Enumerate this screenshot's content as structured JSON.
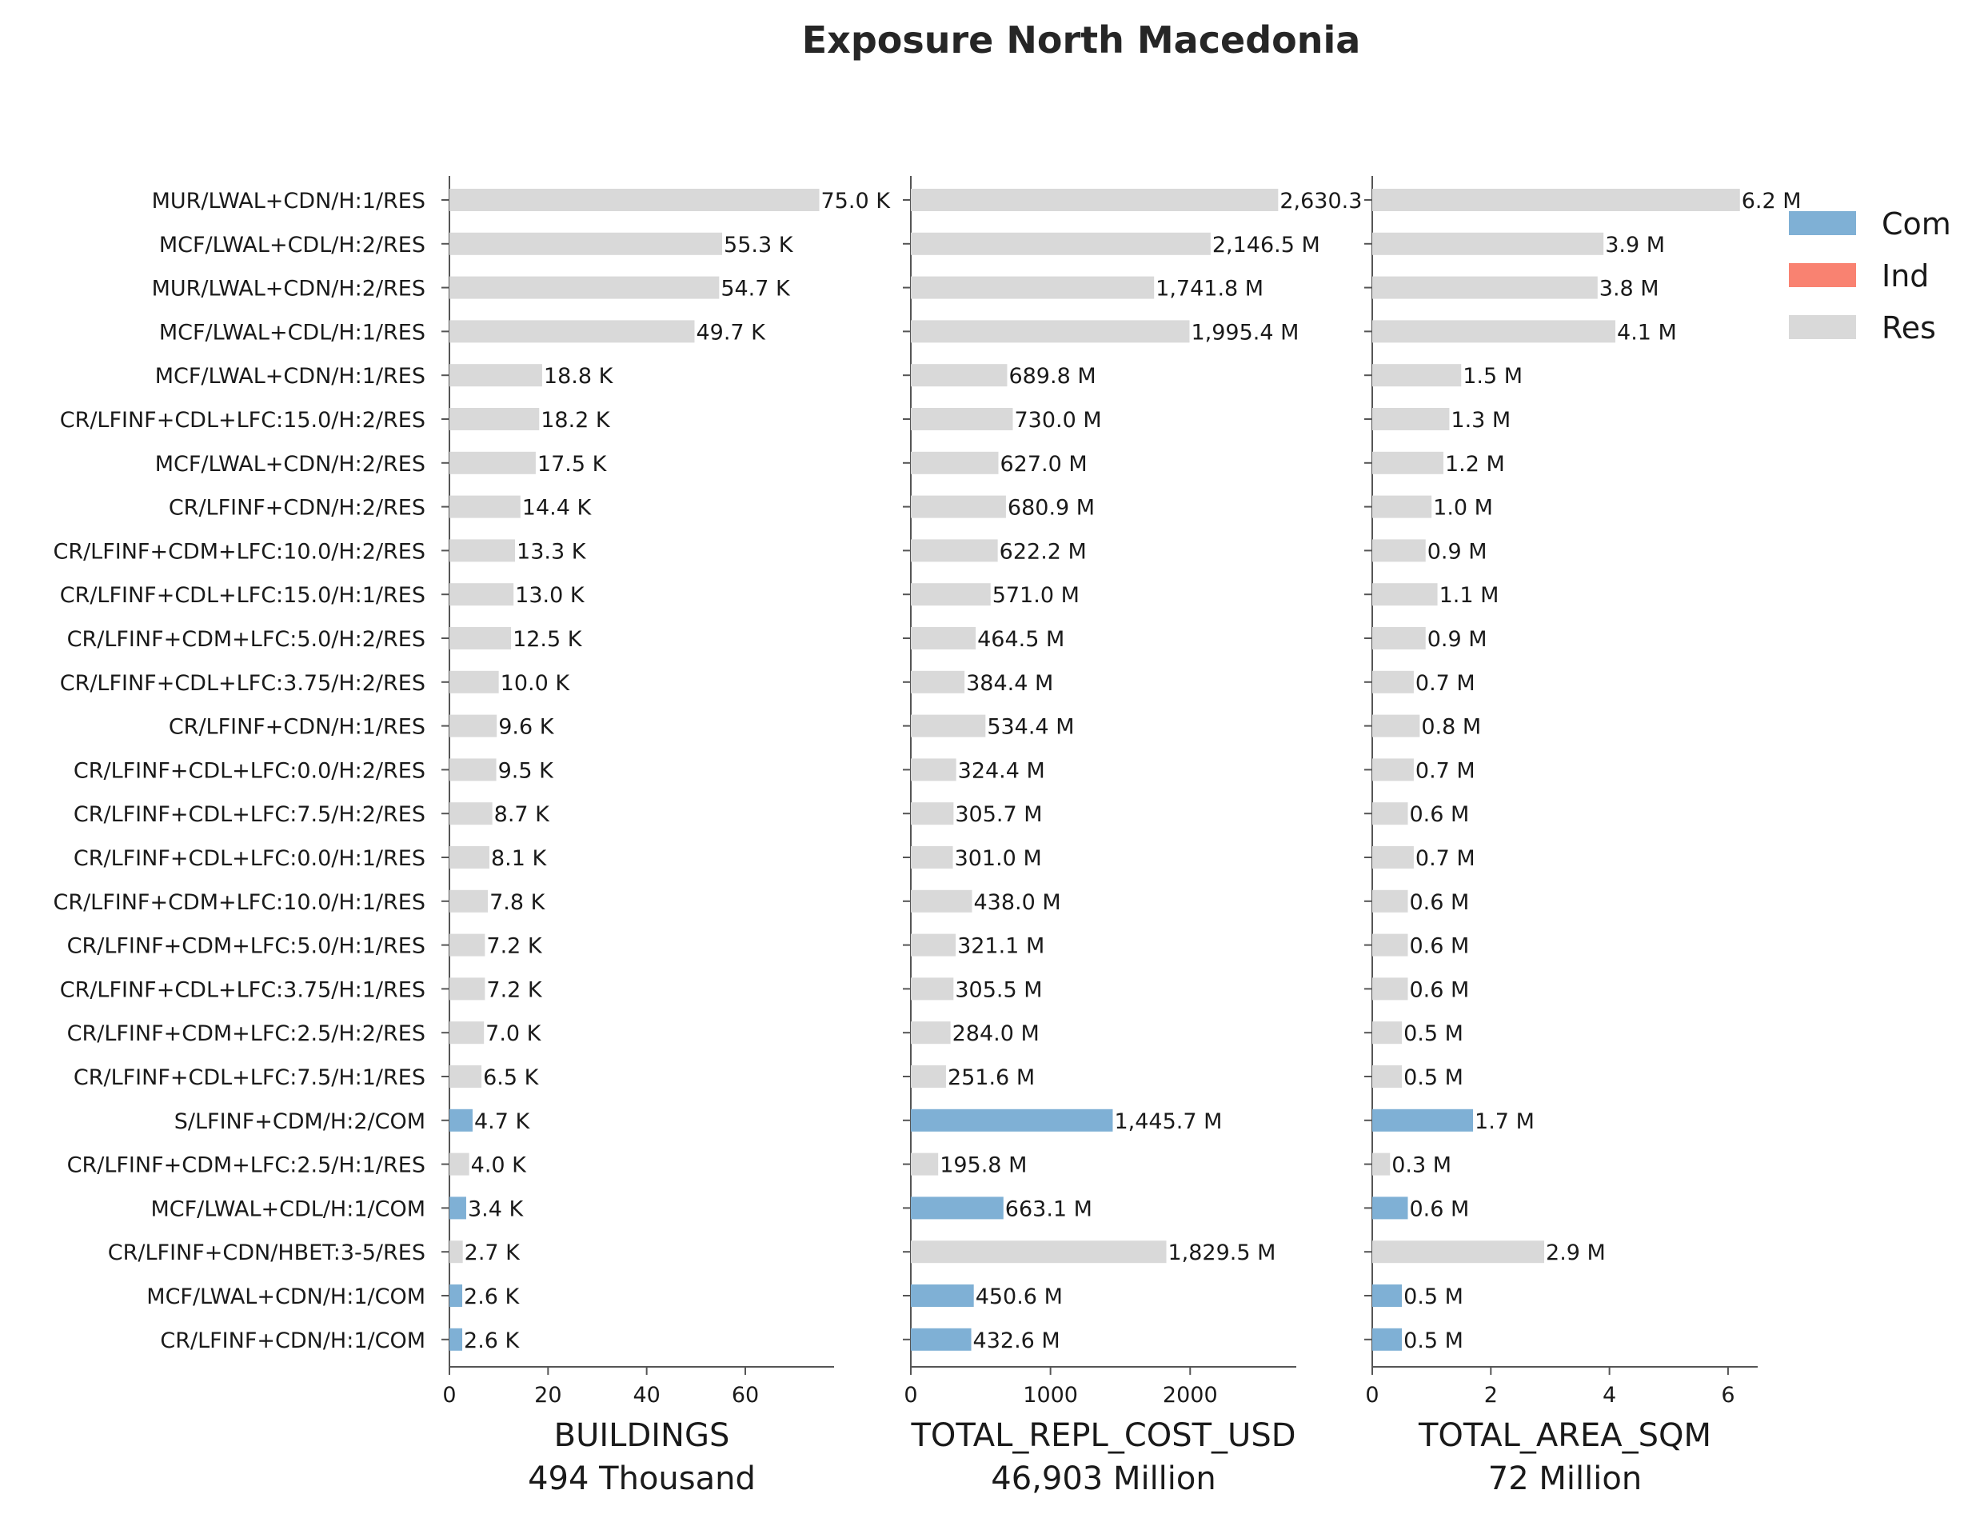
{
  "chart_data": {
    "type": "bar",
    "orientation": "horizontal",
    "title": "Exposure North Macedonia",
    "categories": [
      "MUR/LWAL+CDN/H:1/RES",
      "MCF/LWAL+CDL/H:2/RES",
      "MUR/LWAL+CDN/H:2/RES",
      "MCF/LWAL+CDL/H:1/RES",
      "MCF/LWAL+CDN/H:1/RES",
      "CR/LFINF+CDL+LFC:15.0/H:2/RES",
      "MCF/LWAL+CDN/H:2/RES",
      "CR/LFINF+CDN/H:2/RES",
      "CR/LFINF+CDM+LFC:10.0/H:2/RES",
      "CR/LFINF+CDL+LFC:15.0/H:1/RES",
      "CR/LFINF+CDM+LFC:5.0/H:2/RES",
      "CR/LFINF+CDL+LFC:3.75/H:2/RES",
      "CR/LFINF+CDN/H:1/RES",
      "CR/LFINF+CDL+LFC:0.0/H:2/RES",
      "CR/LFINF+CDL+LFC:7.5/H:2/RES",
      "CR/LFINF+CDL+LFC:0.0/H:1/RES",
      "CR/LFINF+CDM+LFC:10.0/H:1/RES",
      "CR/LFINF+CDM+LFC:5.0/H:1/RES",
      "CR/LFINF+CDL+LFC:3.75/H:1/RES",
      "CR/LFINF+CDM+LFC:2.5/H:2/RES",
      "CR/LFINF+CDL+LFC:7.5/H:1/RES",
      "S/LFINF+CDM/H:2/COM",
      "CR/LFINF+CDM+LFC:2.5/H:1/RES",
      "MCF/LWAL+CDL/H:1/COM",
      "CR/LFINF+CDN/HBET:3-5/RES",
      "MCF/LWAL+CDN/H:1/COM",
      "CR/LFINF+CDN/H:1/COM"
    ],
    "occupancy": [
      "Res",
      "Res",
      "Res",
      "Res",
      "Res",
      "Res",
      "Res",
      "Res",
      "Res",
      "Res",
      "Res",
      "Res",
      "Res",
      "Res",
      "Res",
      "Res",
      "Res",
      "Res",
      "Res",
      "Res",
      "Res",
      "Com",
      "Res",
      "Com",
      "Res",
      "Com",
      "Com"
    ],
    "panels": [
      {
        "xlabel": "BUILDINGS",
        "total_label": "494 Thousand",
        "xlim": [
          0,
          78
        ],
        "xticks": [
          0,
          20,
          40,
          60
        ],
        "values": [
          75.0,
          55.3,
          54.7,
          49.7,
          18.8,
          18.2,
          17.5,
          14.4,
          13.3,
          13.0,
          12.5,
          10.0,
          9.6,
          9.5,
          8.7,
          8.1,
          7.8,
          7.2,
          7.2,
          7.0,
          6.5,
          4.7,
          4.0,
          3.4,
          2.7,
          2.6,
          2.6
        ],
        "value_labels": [
          "75.0 K",
          "55.3 K",
          "54.7 K",
          "49.7 K",
          "18.8 K",
          "18.2 K",
          "17.5 K",
          "14.4 K",
          "13.3 K",
          "13.0 K",
          "12.5 K",
          "10.0 K",
          "9.6 K",
          "9.5 K",
          "8.7 K",
          "8.1 K",
          "7.8 K",
          "7.2 K",
          "7.2 K",
          "7.0 K",
          "6.5 K",
          "4.7 K",
          "4.0 K",
          "3.4 K",
          "2.7 K",
          "2.6 K",
          "2.6 K"
        ]
      },
      {
        "xlabel": "TOTAL_REPL_COST_USD",
        "total_label": "46,903 Million",
        "xlim": [
          0,
          2760
        ],
        "xticks": [
          0,
          1000,
          2000
        ],
        "values": [
          2630.3,
          2146.5,
          1741.8,
          1995.4,
          689.8,
          730.0,
          627.0,
          680.9,
          622.2,
          571.0,
          464.5,
          384.4,
          534.4,
          324.4,
          305.7,
          301.0,
          438.0,
          321.1,
          305.5,
          284.0,
          251.6,
          1445.7,
          195.8,
          663.1,
          1829.5,
          450.6,
          432.6
        ],
        "value_labels": [
          "2,630.3",
          "2,146.5 M",
          "1,741.8 M",
          "1,995.4 M",
          "689.8 M",
          "730.0 M",
          "627.0 M",
          "680.9 M",
          "622.2 M",
          "571.0 M",
          "464.5 M",
          "384.4 M",
          "534.4 M",
          "324.4 M",
          "305.7 M",
          "301.0 M",
          "438.0 M",
          "321.1 M",
          "305.5 M",
          "284.0 M",
          "251.6 M",
          "1,445.7 M",
          "195.8 M",
          "663.1 M",
          "1,829.5 M",
          "450.6 M",
          "432.6 M"
        ]
      },
      {
        "xlabel": "TOTAL_AREA_SQM",
        "total_label": "72 Million",
        "xlim": [
          0,
          6.5
        ],
        "xticks": [
          0,
          2,
          4,
          6
        ],
        "values": [
          6.2,
          3.9,
          3.8,
          4.1,
          1.5,
          1.3,
          1.2,
          1.0,
          0.9,
          1.1,
          0.9,
          0.7,
          0.8,
          0.7,
          0.6,
          0.7,
          0.6,
          0.6,
          0.6,
          0.5,
          0.5,
          1.7,
          0.3,
          0.6,
          2.9,
          0.5,
          0.5
        ],
        "value_labels": [
          "6.2 M",
          "3.9 M",
          "3.8 M",
          "4.1 M",
          "1.5 M",
          "1.3 M",
          "1.2 M",
          "1.0 M",
          "0.9 M",
          "1.1 M",
          "0.9 M",
          "0.7 M",
          "0.8 M",
          "0.7 M",
          "0.6 M",
          "0.7 M",
          "0.6 M",
          "0.6 M",
          "0.6 M",
          "0.5 M",
          "0.5 M",
          "1.7 M",
          "0.3 M",
          "0.6 M",
          "2.9 M",
          "0.5 M",
          "0.5 M"
        ]
      }
    ],
    "legend": {
      "placement": "right",
      "entries": [
        {
          "name": "Com",
          "color": "#7fb0d5"
        },
        {
          "name": "Ind",
          "color": "#f98271"
        },
        {
          "name": "Res",
          "color": "#d9d9d9"
        }
      ]
    },
    "colors": {
      "Com": "#7fb0d5",
      "Ind": "#f98271",
      "Res": "#d9d9d9",
      "axis": "#555555"
    },
    "grid": false
  }
}
